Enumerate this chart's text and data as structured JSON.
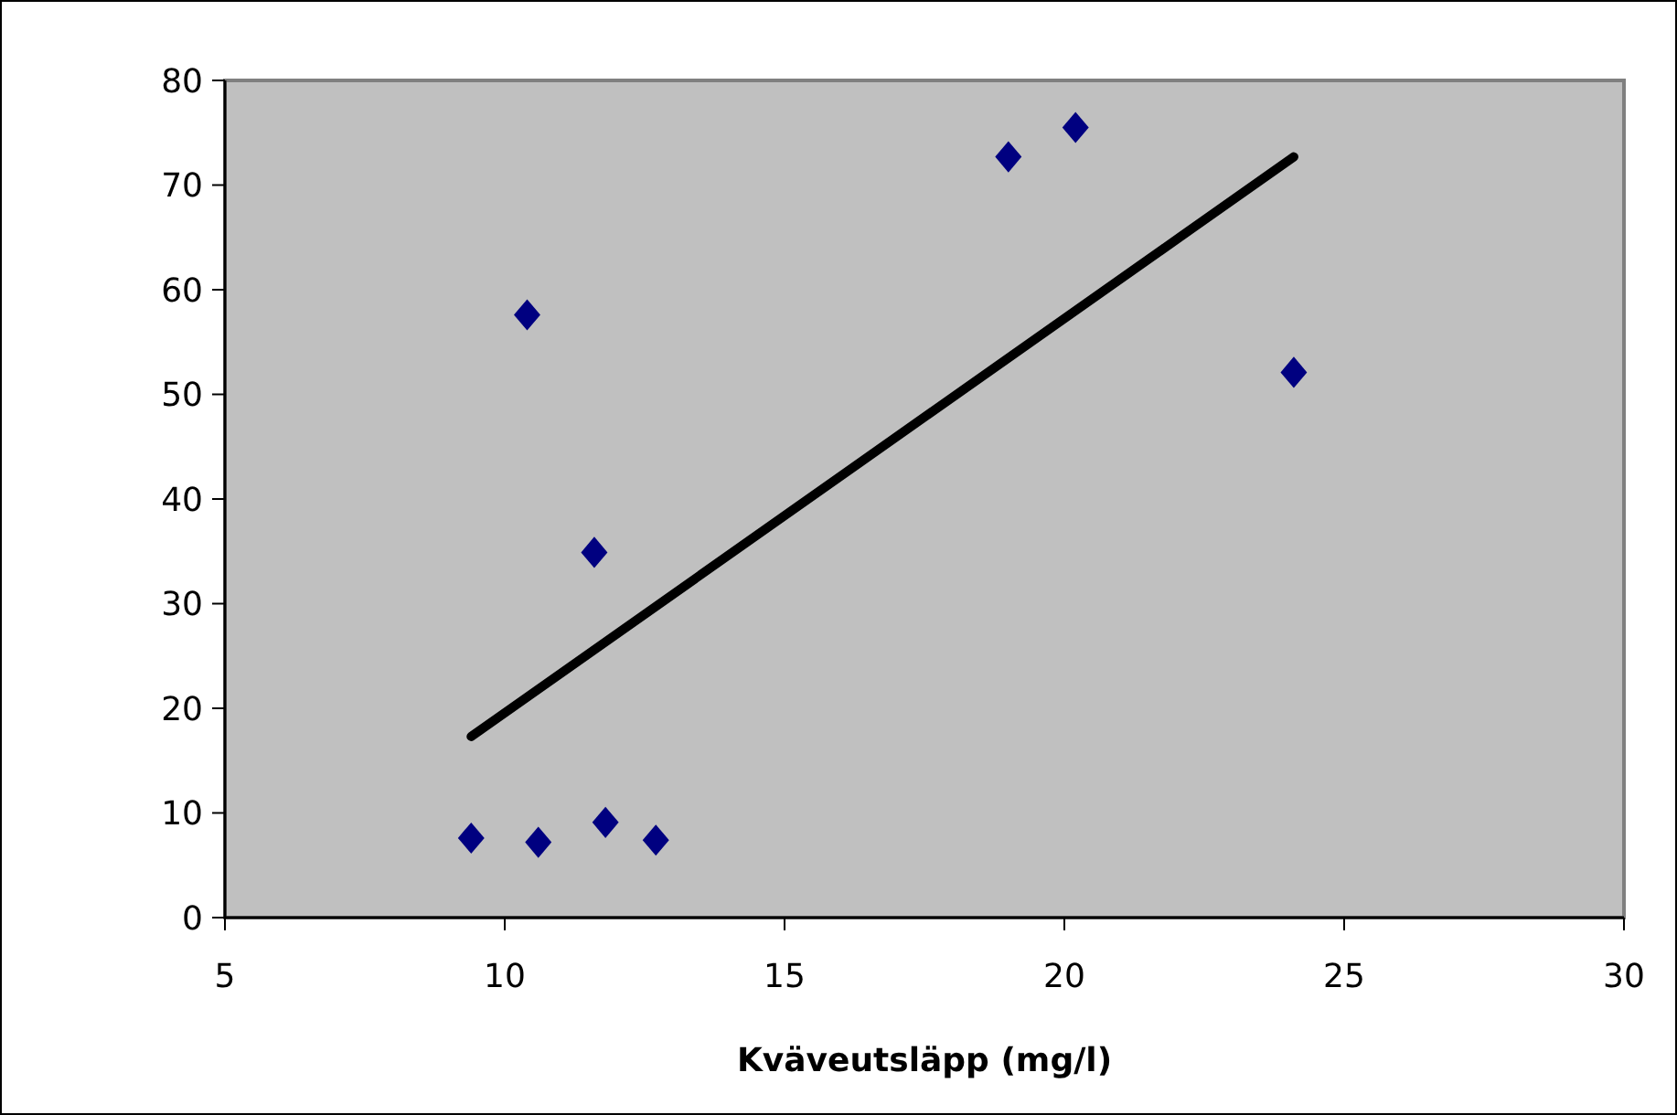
{
  "chart_data": {
    "type": "scatter",
    "xlabel": "Kväveutsläpp (mg/l)",
    "xlim": [
      5,
      30
    ],
    "xticks": [
      5,
      10,
      15,
      20,
      25,
      30
    ],
    "ylim": [
      0,
      80
    ],
    "yticks": [
      0,
      10,
      20,
      30,
      40,
      50,
      60,
      70,
      80
    ],
    "grid": false,
    "marker": "diamond",
    "series": [
      {
        "color": "#000080",
        "x": [
          9.4,
          10.6,
          11.8,
          12.7,
          10.4,
          11.6,
          19.0,
          20.2,
          24.1
        ],
        "values": [
          7.6,
          7.2,
          9.1,
          7.4,
          57.6,
          34.9,
          72.7,
          75.5,
          52.1
        ]
      },
      {
        "type": "line",
        "color": "#000000",
        "marker": "none",
        "x": [
          9.4,
          24.1
        ],
        "values": [
          17.3,
          72.7
        ]
      }
    ]
  }
}
